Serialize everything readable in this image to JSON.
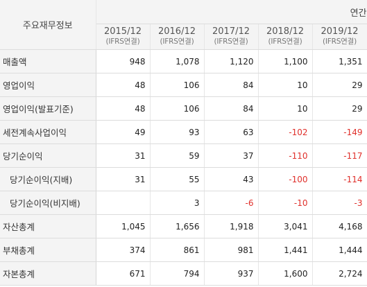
{
  "header": {
    "corner_label": "주요재무정보",
    "period_group": "연간",
    "periods": [
      {
        "year": "2015/12",
        "basis": "(IFRS연결)"
      },
      {
        "year": "2016/12",
        "basis": "(IFRS연결)"
      },
      {
        "year": "2017/12",
        "basis": "(IFRS연결)"
      },
      {
        "year": "2018/12",
        "basis": "(IFRS연결)"
      },
      {
        "year": "2019/12",
        "basis": "(IFRS연결)"
      }
    ]
  },
  "rows": [
    {
      "label": "매출액",
      "values": [
        "948",
        "1,078",
        "1,120",
        "1,100",
        "1,351"
      ]
    },
    {
      "label": "영업이익",
      "values": [
        "48",
        "106",
        "84",
        "10",
        "29"
      ]
    },
    {
      "label": "영업이익(발표기준)",
      "values": [
        "48",
        "106",
        "84",
        "10",
        "29"
      ]
    },
    {
      "label": "세전계속사업이익",
      "values": [
        "49",
        "93",
        "63",
        "-102",
        "-149"
      ]
    },
    {
      "label": "당기순이익",
      "values": [
        "31",
        "59",
        "37",
        "-110",
        "-117"
      ]
    },
    {
      "label": "당기순이익(지배)",
      "values": [
        "31",
        "55",
        "43",
        "-100",
        "-114"
      ]
    },
    {
      "label": "당기순이익(비지배)",
      "values": [
        "",
        "3",
        "-6",
        "-10",
        "-3"
      ]
    },
    {
      "label": "자산총계",
      "values": [
        "1,045",
        "1,656",
        "1,918",
        "3,041",
        "4,168"
      ]
    },
    {
      "label": "부채총계",
      "values": [
        "374",
        "861",
        "981",
        "1,441",
        "1,444"
      ]
    },
    {
      "label": "자본총계",
      "values": [
        "671",
        "794",
        "937",
        "1,600",
        "2,724"
      ]
    }
  ],
  "colors": {
    "header_bg": "#f4f4f4",
    "negative_text": "#e0302b",
    "text": "#333333",
    "border": "#dcdcdc"
  }
}
